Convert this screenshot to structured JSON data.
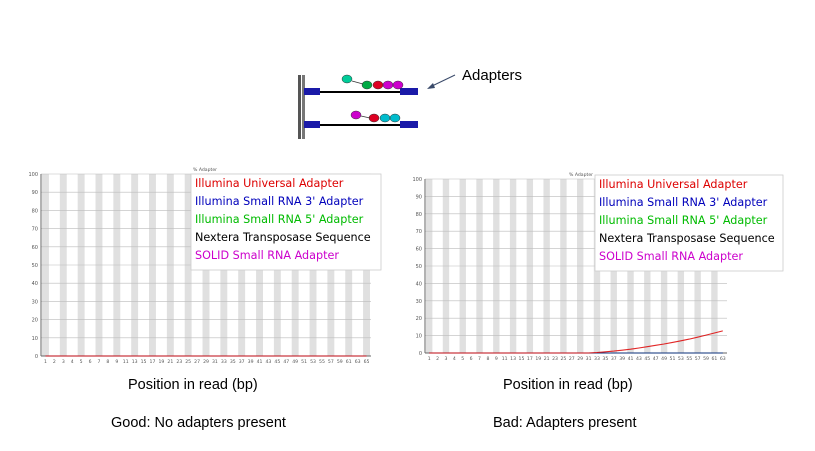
{
  "diagram": {
    "label": "Adapters"
  },
  "captions": {
    "left_axis": "Position in read (bp)",
    "right_axis": "Position in read (bp)",
    "left_verdict": "Good: No adapters present",
    "right_verdict": "Bad: Adapters present"
  },
  "colors": {
    "illumina_universal": "#dd0000",
    "illumina_small_3": "#0000bb",
    "illumina_small_5": "#00bb00",
    "nextera": "#000000",
    "solid": "#cc00cc",
    "diagram_blue": "#1a1aa8",
    "grid_band": "#e0e0e0"
  },
  "chart_data": [
    {
      "type": "line",
      "title": "% Adapter",
      "xlabel": "",
      "ylabel": "",
      "ylim": [
        0,
        100
      ],
      "yticks": [
        0,
        10,
        20,
        30,
        40,
        50,
        60,
        70,
        80,
        90,
        100
      ],
      "xticks": [
        "1",
        "2",
        "3",
        "4",
        "5",
        "6",
        "7",
        "8",
        "9",
        "11",
        "13",
        "15",
        "17",
        "19",
        "21",
        "23",
        "25",
        "27",
        "29",
        "31",
        "33",
        "35",
        "37",
        "39",
        "41",
        "43",
        "45",
        "47",
        "49",
        "51",
        "53",
        "55",
        "57",
        "59",
        "61",
        "63",
        "65"
      ],
      "legend": [
        "Illumina Universal Adapter",
        "Illumina Small RNA 3' Adapter",
        "Illumina Small RNA 5' Adapter",
        "Nextera Transposase Sequence",
        "SOLID Small RNA Adapter"
      ],
      "legend_position": "top-right",
      "series": [
        {
          "name": "Illumina Universal Adapter",
          "values": [
            0,
            0,
            0,
            0,
            0,
            0,
            0,
            0,
            0,
            0,
            0,
            0,
            0,
            0,
            0,
            0,
            0,
            0,
            0,
            0,
            0,
            0,
            0,
            0,
            0,
            0,
            0,
            0,
            0,
            0,
            0,
            0,
            0,
            0,
            0,
            0,
            0
          ]
        },
        {
          "name": "Illumina Small RNA 3' Adapter",
          "values": [
            0,
            0,
            0,
            0,
            0,
            0,
            0,
            0,
            0,
            0,
            0,
            0,
            0,
            0,
            0,
            0,
            0,
            0,
            0,
            0,
            0,
            0,
            0,
            0,
            0,
            0,
            0,
            0,
            0,
            0,
            0,
            0,
            0,
            0,
            0,
            0,
            0
          ]
        },
        {
          "name": "Illumina Small RNA 5' Adapter",
          "values": [
            0,
            0,
            0,
            0,
            0,
            0,
            0,
            0,
            0,
            0,
            0,
            0,
            0,
            0,
            0,
            0,
            0,
            0,
            0,
            0,
            0,
            0,
            0,
            0,
            0,
            0,
            0,
            0,
            0,
            0,
            0,
            0,
            0,
            0,
            0,
            0,
            0
          ]
        },
        {
          "name": "Nextera Transposase Sequence",
          "values": [
            0,
            0,
            0,
            0,
            0,
            0,
            0,
            0,
            0,
            0,
            0,
            0,
            0,
            0,
            0,
            0,
            0,
            0,
            0,
            0,
            0,
            0,
            0,
            0,
            0,
            0,
            0,
            0,
            0,
            0,
            0,
            0,
            0,
            0,
            0,
            0,
            0
          ]
        },
        {
          "name": "SOLID Small RNA Adapter",
          "values": [
            0,
            0,
            0,
            0,
            0,
            0,
            0,
            0,
            0,
            0,
            0,
            0,
            0,
            0,
            0,
            0,
            0,
            0,
            0,
            0,
            0,
            0,
            0,
            0,
            0,
            0,
            0,
            0,
            0,
            0,
            0,
            0,
            0,
            0,
            0,
            0,
            0
          ]
        }
      ]
    },
    {
      "type": "line",
      "title": "% Adapter",
      "xlabel": "",
      "ylabel": "",
      "ylim": [
        0,
        100
      ],
      "yticks": [
        0,
        10,
        20,
        30,
        40,
        50,
        60,
        70,
        80,
        90,
        100
      ],
      "xticks": [
        "1",
        "2",
        "3",
        "4",
        "5",
        "6",
        "7",
        "8",
        "9",
        "11",
        "13",
        "15",
        "17",
        "19",
        "21",
        "23",
        "25",
        "27",
        "29",
        "31",
        "33",
        "35",
        "37",
        "39",
        "41",
        "43",
        "45",
        "47",
        "49",
        "51",
        "53",
        "55",
        "57",
        "59",
        "61",
        "63"
      ],
      "legend": [
        "Illumina Universal Adapter",
        "Illumina Small RNA 3' Adapter",
        "Illumina Small RNA 5' Adapter",
        "Nextera Transposase Sequence",
        "SOLID Small RNA Adapter"
      ],
      "legend_position": "top-right",
      "series": [
        {
          "name": "Illumina Universal Adapter",
          "values": [
            0,
            0,
            0,
            0,
            0,
            0,
            0,
            0,
            0,
            0,
            0,
            0,
            0,
            0,
            0,
            0,
            0,
            0,
            0,
            0,
            0.3,
            0.7,
            1.1,
            1.6,
            2.2,
            2.9,
            3.6,
            4.4,
            5.2,
            6.1,
            7.0,
            8.0,
            9.1,
            10.3,
            11.5,
            12.7
          ]
        },
        {
          "name": "Illumina Small RNA 3' Adapter",
          "values": [
            0,
            0,
            0,
            0,
            0,
            0,
            0,
            0,
            0,
            0,
            0,
            0,
            0,
            0,
            0,
            0,
            0,
            0,
            0,
            0,
            0,
            0,
            0,
            0,
            0,
            0,
            0,
            0,
            0,
            0,
            0,
            0,
            0,
            0,
            0,
            0
          ]
        },
        {
          "name": "Illumina Small RNA 5' Adapter",
          "values": [
            0,
            0,
            0,
            0,
            0,
            0,
            0,
            0,
            0,
            0,
            0,
            0,
            0,
            0,
            0,
            0,
            0,
            0,
            0,
            0,
            0,
            0,
            0,
            0,
            0,
            0,
            0,
            0,
            0,
            0,
            0,
            0,
            0,
            0,
            0,
            0
          ]
        },
        {
          "name": "Nextera Transposase Sequence",
          "values": [
            0,
            0,
            0,
            0,
            0,
            0,
            0,
            0,
            0,
            0,
            0,
            0,
            0,
            0,
            0,
            0,
            0,
            0,
            0,
            0,
            0,
            0,
            0,
            0,
            0,
            0,
            0,
            0,
            0,
            0,
            0,
            0,
            0,
            0,
            0,
            0
          ]
        },
        {
          "name": "SOLID Small RNA Adapter",
          "values": [
            0,
            0,
            0,
            0,
            0,
            0,
            0,
            0,
            0,
            0,
            0,
            0,
            0,
            0,
            0,
            0,
            0,
            0,
            0,
            0,
            0,
            0,
            0,
            0,
            0,
            0,
            0,
            0,
            0,
            0,
            0,
            0,
            0,
            0,
            0,
            0
          ]
        }
      ]
    }
  ]
}
